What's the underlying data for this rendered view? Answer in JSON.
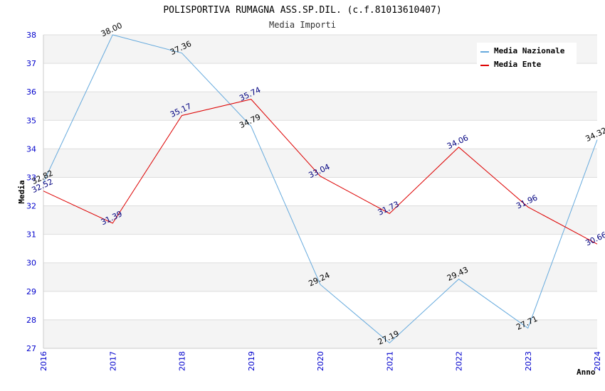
{
  "chart_data": {
    "type": "line",
    "title": "POLISPORTIVA RUMAGNA ASS.SP.DIL. (c.f.81013610407)",
    "subtitle": "Media Importi",
    "xlabel": "Anno",
    "ylabel": "Media",
    "x": [
      "2016",
      "2017",
      "2018",
      "2019",
      "2020",
      "2021",
      "2022",
      "2023",
      "2024"
    ],
    "ylim": [
      27,
      38
    ],
    "yticks": [
      "27",
      "28",
      "29",
      "30",
      "31",
      "32",
      "33",
      "34",
      "35",
      "36",
      "37",
      "38"
    ],
    "grid": true,
    "legend_position": "top-right",
    "series": [
      {
        "name": "Media Nazionale",
        "color": "#66aadd",
        "label_color": "#000000",
        "values": [
          32.82,
          38.0,
          37.36,
          34.79,
          29.24,
          27.19,
          29.43,
          27.71,
          34.32
        ],
        "labels": [
          "32.82",
          "38.00",
          "37.36",
          "34.79",
          "29.24",
          "27.19",
          "29.43",
          "27.71",
          "34.32"
        ]
      },
      {
        "name": "Media Ente",
        "color": "#dd0000",
        "label_color": "#000080",
        "values": [
          32.52,
          31.39,
          35.17,
          35.74,
          33.04,
          31.73,
          34.06,
          31.96,
          30.66
        ],
        "labels": [
          "32.52",
          "31.39",
          "35.17",
          "35.74",
          "33.04",
          "31.73",
          "34.06",
          "31.96",
          "30.66"
        ]
      }
    ]
  }
}
